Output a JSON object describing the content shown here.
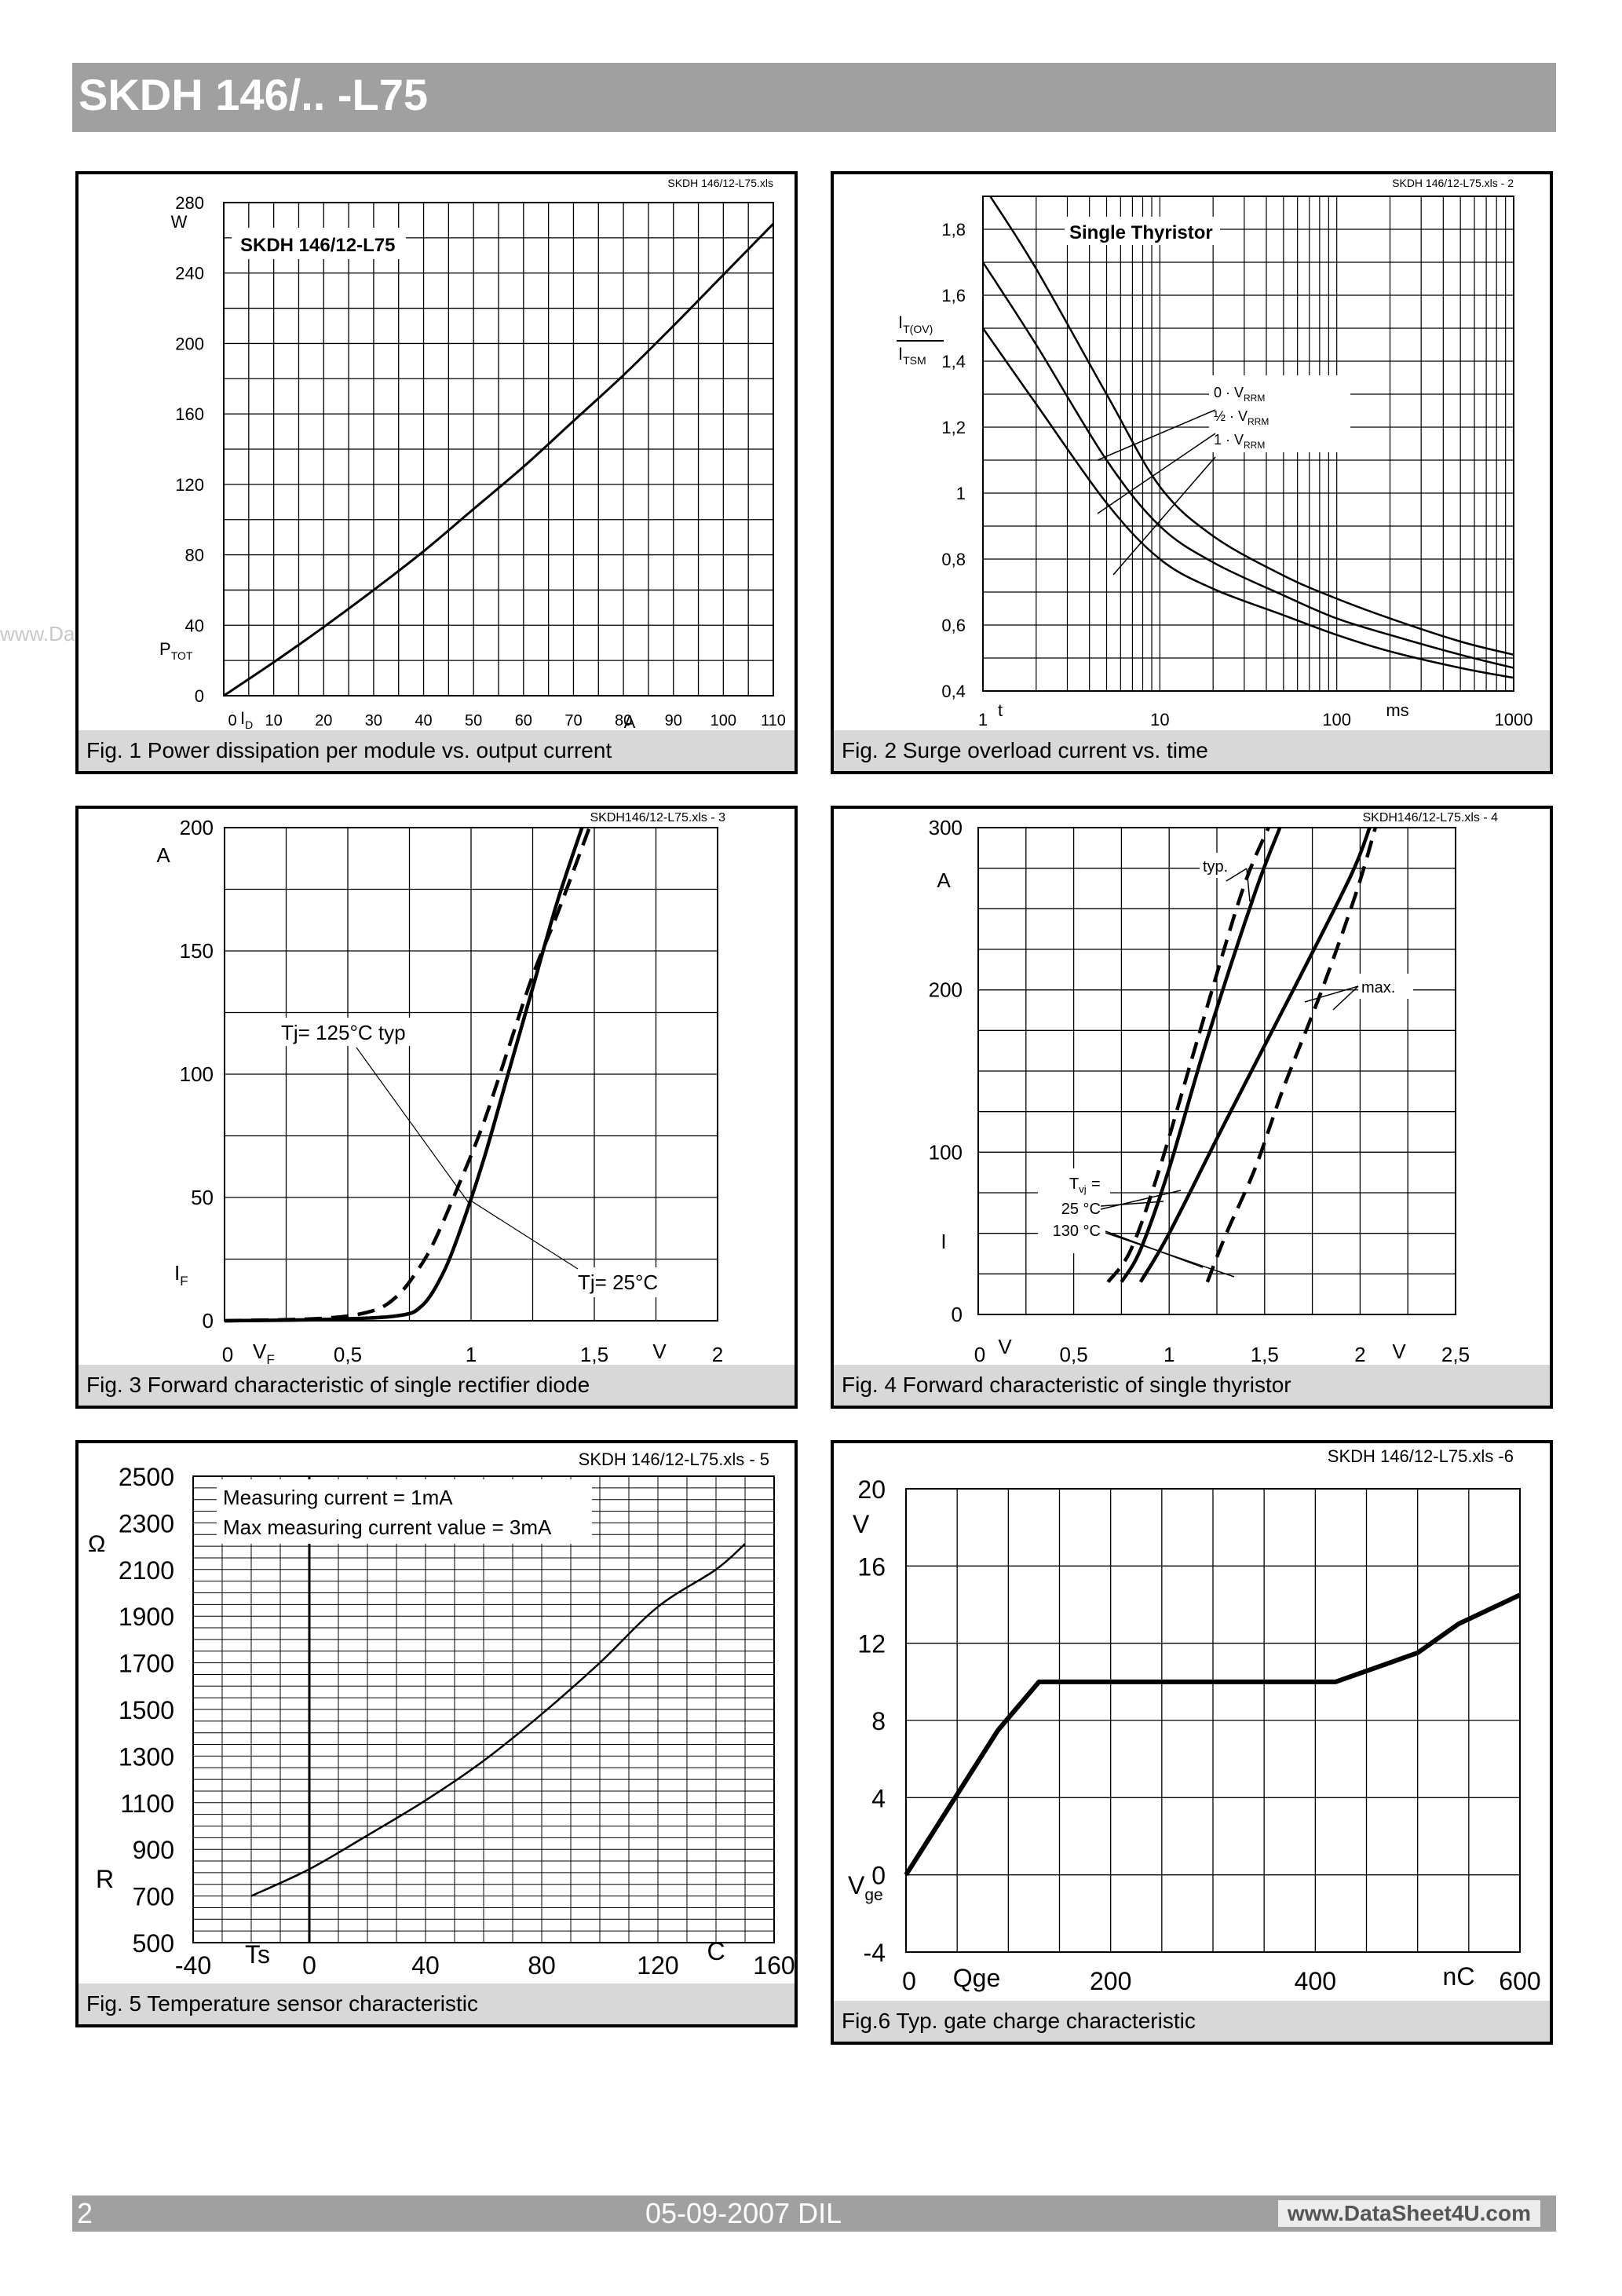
{
  "header": {
    "title": "SKDH 146/.. -L75"
  },
  "watermark": "www.DataSheet4U.com",
  "footer": {
    "page": "2",
    "date": "05-09-2007  DIL",
    "site": "www.DataSheet4U.com"
  },
  "chart_data": [
    {
      "id": "fig1",
      "type": "line",
      "file": "SKDH 146/12-L75.xls",
      "caption": "Fig. 1 Power dissipation per module vs. output current",
      "inset_label": "SKDH 146/12-L75",
      "xlim": [
        0,
        110
      ],
      "ylim": [
        0,
        280
      ],
      "x_ticks": [
        "0",
        "10",
        "20",
        "30",
        "40",
        "50",
        "60",
        "70",
        "80",
        "90",
        "100",
        "110"
      ],
      "y_ticks": [
        "0",
        "40",
        "80",
        "120",
        "160",
        "200",
        "240",
        "280"
      ],
      "x_unit": "A",
      "y_unit": "W",
      "xlabel_sym": "I",
      "xlabel_sub": "D",
      "ylabel_sym": "P",
      "ylabel_sub": "TOT",
      "series": [
        {
          "x": [
            0,
            10,
            20,
            30,
            40,
            50,
            60,
            70,
            80,
            90,
            100,
            110
          ],
          "y": [
            0,
            19,
            39,
            60,
            82,
            106,
            130,
            156,
            182,
            210,
            239,
            268
          ]
        }
      ]
    },
    {
      "id": "fig2",
      "type": "line",
      "xscale": "log",
      "file": "SKDH 146/12-L75.xls - 2",
      "caption": "Fig. 2 Surge overload current vs. time",
      "inset_label": "Single Thyristor",
      "xlim": [
        1,
        1000
      ],
      "ylim": [
        0.4,
        1.9
      ],
      "x_ticks": [
        "1",
        "10",
        "100",
        "1000"
      ],
      "y_ticks": [
        "0,4",
        "0,6",
        "0,8",
        "1",
        "1,2",
        "1,4",
        "1,6",
        "1,8"
      ],
      "x_unit": "ms",
      "xlabel_sym": "t",
      "ylabel_num_sym": "I",
      "ylabel_num_sub": "T(OV)",
      "ylabel_den_sym": "I",
      "ylabel_den_sub": "TSM",
      "legend": [
        {
          "pre": "0 · V",
          "sub": "RRM"
        },
        {
          "pre": "½ · V",
          "sub": "RRM"
        },
        {
          "pre": "1 · V",
          "sub": "RRM"
        }
      ],
      "series": [
        {
          "x": [
            1.1,
            2,
            5,
            10,
            20,
            50,
            100,
            200,
            500,
            1000
          ],
          "y": [
            1.9,
            1.68,
            1.3,
            1.02,
            0.87,
            0.75,
            0.68,
            0.62,
            0.55,
            0.51
          ]
        },
        {
          "x": [
            1,
            2,
            5,
            10,
            20,
            50,
            100,
            200,
            500,
            1000
          ],
          "y": [
            1.7,
            1.45,
            1.1,
            0.9,
            0.79,
            0.69,
            0.62,
            0.57,
            0.51,
            0.47
          ]
        },
        {
          "x": [
            1,
            2,
            5,
            10,
            20,
            50,
            100,
            200,
            500,
            1000
          ],
          "y": [
            1.5,
            1.27,
            0.97,
            0.8,
            0.71,
            0.63,
            0.57,
            0.52,
            0.47,
            0.44
          ]
        }
      ]
    },
    {
      "id": "fig3",
      "type": "line",
      "file": "SKDH146/12-L75.xls - 3",
      "caption": "Fig. 3 Forward characteristic of single rectifier diode",
      "xlim": [
        0,
        2
      ],
      "ylim": [
        0,
        200
      ],
      "x_ticks": [
        "0",
        "0,5",
        "1",
        "1,5",
        "2"
      ],
      "y_ticks": [
        "0",
        "50",
        "100",
        "150",
        "200"
      ],
      "x_unit": "V",
      "y_unit": "A",
      "xlabel_sym": "V",
      "xlabel_sub": "F",
      "ylabel_sym": "I",
      "ylabel_sub": "F",
      "annotations": [
        "Tj= 125°C typ",
        "Tj= 25°C"
      ],
      "series": [
        {
          "style": "solid",
          "x": [
            0,
            0.4,
            0.7,
            0.8,
            0.88,
            0.95,
            1.05,
            1.15,
            1.25,
            1.35,
            1.45
          ],
          "y": [
            0,
            0.5,
            2,
            6,
            18,
            35,
            65,
            100,
            135,
            170,
            200
          ]
        },
        {
          "style": "dashed",
          "x": [
            0,
            0.4,
            0.6,
            0.7,
            0.78,
            0.85,
            0.95,
            1.05,
            1.15,
            1.25,
            1.35,
            1.48
          ],
          "y": [
            0,
            1,
            4,
            10,
            20,
            32,
            55,
            80,
            110,
            140,
            165,
            200
          ]
        }
      ]
    },
    {
      "id": "fig4",
      "type": "line",
      "file": "SKDH146/12-L75.xls - 4",
      "caption": "Fig. 4 Forward characteristic of single thyristor",
      "xlim": [
        0,
        2.5
      ],
      "ylim": [
        0,
        300
      ],
      "x_ticks": [
        "0",
        "0,5",
        "1",
        "1,5",
        "2",
        "2,5"
      ],
      "y_ticks": [
        "0",
        "100",
        "200",
        "300"
      ],
      "x_unit": "V",
      "y_unit": "A",
      "xlabel_sym": "V",
      "ylabel_sym": "I",
      "annotations": [
        "typ.",
        "max."
      ],
      "legend_title": "T",
      "legend_title_sub": "vj",
      "legend_title_post": " =",
      "legend_entries": [
        "25 °C",
        "130 °C"
      ],
      "series": [
        {
          "name": "typ. 25",
          "style": "solid",
          "x": [
            0.75,
            0.85,
            1.0,
            1.2,
            1.45,
            1.58
          ],
          "y": [
            20,
            40,
            90,
            170,
            260,
            300
          ]
        },
        {
          "name": "typ. 130",
          "style": "dashed",
          "x": [
            0.68,
            0.8,
            0.95,
            1.15,
            1.38,
            1.52
          ],
          "y": [
            20,
            40,
            90,
            170,
            260,
            300
          ]
        },
        {
          "name": "max. 25",
          "style": "solid",
          "x": [
            0.85,
            1.0,
            1.3,
            1.65,
            1.95,
            2.05
          ],
          "y": [
            20,
            50,
            120,
            200,
            270,
            300
          ]
        },
        {
          "name": "max. 130",
          "style": "dashed",
          "x": [
            1.2,
            1.3,
            1.45,
            1.6,
            1.8,
            1.98,
            2.08
          ],
          "y": [
            20,
            50,
            90,
            140,
            200,
            260,
            300
          ]
        }
      ]
    },
    {
      "id": "fig5",
      "type": "line",
      "file": "SKDH 146/12-L75.xls - 5",
      "caption": "Fig. 5 Temperature sensor characteristic",
      "inset_lines": [
        "Measuring current = 1mA",
        "Max measuring current value = 3mA"
      ],
      "xlim": [
        -40,
        160
      ],
      "ylim": [
        500,
        2500
      ],
      "x_ticks": [
        "-40",
        "0",
        "40",
        "80",
        "120",
        "160"
      ],
      "y_ticks": [
        "500",
        "700",
        "900",
        "1100",
        "1300",
        "1500",
        "1700",
        "1900",
        "2100",
        "2300",
        "2500"
      ],
      "x_unit": "C",
      "y_unit": "Ω",
      "xlabel_sym": "Ts",
      "ylabel_sym": "R",
      "series": [
        {
          "x": [
            -20,
            0,
            20,
            40,
            60,
            80,
            100,
            120,
            140,
            150
          ],
          "y": [
            700,
            815,
            960,
            1110,
            1280,
            1480,
            1700,
            1940,
            2100,
            2210
          ]
        }
      ]
    },
    {
      "id": "fig6",
      "type": "line",
      "file": "SKDH 146/12-L75.xls -6",
      "caption": "Fig.6 Typ. gate charge characteristic",
      "xlim": [
        0,
        600
      ],
      "ylim": [
        -4,
        20
      ],
      "x_ticks": [
        "0",
        "200",
        "400",
        "600"
      ],
      "y_ticks": [
        "-4",
        "0",
        "4",
        "8",
        "12",
        "16",
        "20"
      ],
      "x_unit": "nC",
      "y_unit": "V",
      "xlabel_sym": "Qge",
      "ylabel_sym": "V",
      "ylabel_sub": "ge",
      "series": [
        {
          "x": [
            0,
            90,
            130,
            420,
            500,
            540,
            600
          ],
          "y": [
            0,
            7.5,
            10,
            10,
            11.5,
            13,
            14.5
          ]
        }
      ]
    }
  ]
}
